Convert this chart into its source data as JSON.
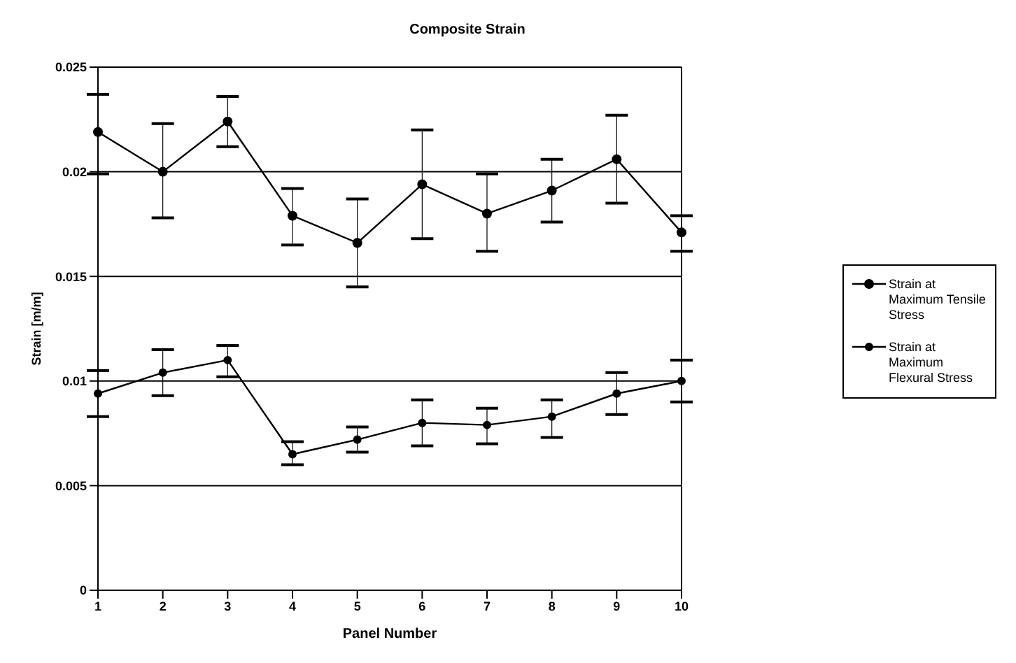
{
  "chart_data": {
    "type": "line",
    "title": "Composite Strain",
    "xlabel": "Panel Number",
    "ylabel": "Strain [m/m]",
    "categories": [
      "1",
      "2",
      "3",
      "4",
      "5",
      "6",
      "7",
      "8",
      "9",
      "10"
    ],
    "series": [
      {
        "name": "Strain at Maximum Tensile Stress",
        "color": "#000000",
        "values": [
          0.0219,
          0.02,
          0.0224,
          0.0179,
          0.0166,
          0.0194,
          0.018,
          0.0191,
          0.0206,
          0.0171
        ],
        "errors": [
          [
            0.0199,
            0.0237
          ],
          [
            0.0178,
            0.0223
          ],
          [
            0.0212,
            0.0236
          ],
          [
            0.0165,
            0.0192
          ],
          [
            0.0145,
            0.0187
          ],
          [
            0.0168,
            0.022
          ],
          [
            0.0162,
            0.0199
          ],
          [
            0.0176,
            0.0206
          ],
          [
            0.0185,
            0.0227
          ],
          [
            0.0162,
            0.0179
          ]
        ]
      },
      {
        "name": "Strain at Maximum Flexural Stress",
        "color": "#000000",
        "values": [
          0.0094,
          0.0104,
          0.011,
          0.0065,
          0.0072,
          0.008,
          0.0079,
          0.0083,
          0.0094,
          0.01
        ],
        "errors": [
          [
            0.0083,
            0.0105
          ],
          [
            0.0093,
            0.0115
          ],
          [
            0.0102,
            0.0117
          ],
          [
            0.006,
            0.0071
          ],
          [
            0.0066,
            0.0078
          ],
          [
            0.0069,
            0.0091
          ],
          [
            0.007,
            0.0087
          ],
          [
            0.0073,
            0.0091
          ],
          [
            0.0084,
            0.0104
          ],
          [
            0.009,
            0.011
          ]
        ]
      }
    ],
    "ylim": [
      0,
      0.025
    ],
    "yticks": [
      0,
      0.005,
      0.01,
      0.015,
      0.02,
      0.025
    ],
    "grid": "y",
    "legend": "right",
    "marker": "circle",
    "line_style": "solid"
  }
}
